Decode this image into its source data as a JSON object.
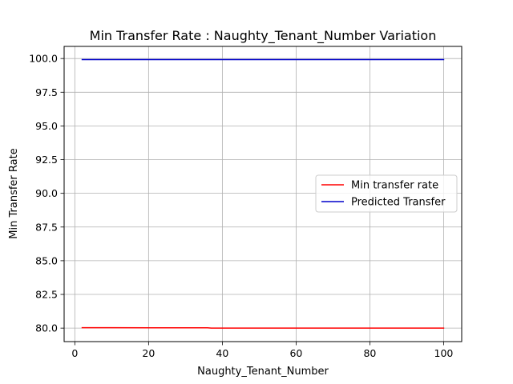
{
  "chart_data": {
    "type": "line",
    "title": "Min Transfer Rate : Naughty_Tenant_Number Variation",
    "xlabel": "Naughty_Tenant_Number",
    "ylabel": "Min Transfer Rate",
    "xlim": [
      -2.9,
      104.9
    ],
    "ylim": [
      79.0,
      100.9
    ],
    "xticks": [
      0,
      20,
      40,
      60,
      80,
      100
    ],
    "xtick_labels": [
      "0",
      "20",
      "40",
      "60",
      "80",
      "100"
    ],
    "yticks": [
      80.0,
      82.5,
      85.0,
      87.5,
      90.0,
      92.5,
      95.0,
      97.5,
      100.0
    ],
    "ytick_labels": [
      "80.0",
      "82.5",
      "85.0",
      "87.5",
      "90.0",
      "92.5",
      "95.0",
      "97.5",
      "100.0"
    ],
    "grid": true,
    "legend_position": "center-right",
    "series": [
      {
        "name": "Min transfer rate",
        "color": "#ff0000",
        "x": [
          2,
          10,
          20,
          30,
          36,
          37,
          50,
          60,
          70,
          80,
          90,
          100
        ],
        "y": [
          80.03,
          80.03,
          80.02,
          80.02,
          80.02,
          80.0,
          80.0,
          80.0,
          80.0,
          80.0,
          80.0,
          80.0
        ]
      },
      {
        "name": "Predicted Transfer",
        "color": "#0000cc",
        "x": [
          2,
          100
        ],
        "y": [
          99.92,
          99.92
        ]
      }
    ]
  }
}
